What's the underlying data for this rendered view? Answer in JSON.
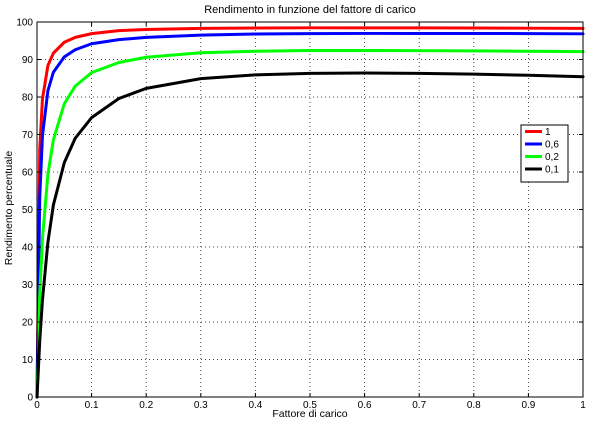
{
  "chart_data": {
    "type": "line",
    "title": "Rendimento in funzione del fattore di carico",
    "xlabel": "Fattore di carico",
    "ylabel": "Rendimento percentuale",
    "xlim": [
      0,
      1
    ],
    "ylim": [
      0,
      100
    ],
    "x_ticks": [
      0,
      0.1,
      0.2,
      0.3,
      0.4,
      0.5,
      0.6,
      0.7,
      0.8,
      0.9,
      1
    ],
    "x_tick_labels": [
      "0",
      "0.1",
      "0.2",
      "0.3",
      "0.4",
      "0.5",
      "0.6",
      "0.7",
      "0.8",
      "0.9",
      "1"
    ],
    "y_ticks": [
      0,
      10,
      20,
      30,
      40,
      50,
      60,
      70,
      80,
      90,
      100
    ],
    "y_tick_labels": [
      "0",
      "10",
      "20",
      "30",
      "40",
      "50",
      "60",
      "70",
      "80",
      "90",
      "100"
    ],
    "grid": true,
    "grid_style": "dotted",
    "legend_position": "right",
    "x": [
      0,
      0.005,
      0.01,
      0.02,
      0.03,
      0.05,
      0.07,
      0.1,
      0.15,
      0.2,
      0.3,
      0.4,
      0.5,
      0.6,
      0.7,
      0.8,
      0.9,
      1.0
    ],
    "series": [
      {
        "name": "1",
        "color": "#ff0000",
        "values": [
          0,
          66.0,
          79.5,
          88.4,
          91.7,
          94.6,
          95.9,
          96.9,
          97.7,
          98.0,
          98.3,
          98.4,
          98.45,
          98.45,
          98.45,
          98.4,
          98.35,
          98.3
        ]
      },
      {
        "name": "0,6",
        "color": "#0000ff",
        "values": [
          0,
          53.3,
          69.7,
          81.7,
          86.6,
          90.7,
          92.6,
          94.2,
          95.3,
          95.9,
          96.5,
          96.8,
          96.9,
          96.95,
          96.95,
          96.95,
          96.9,
          96.85
        ]
      },
      {
        "name": "0,2",
        "color": "#00ff00",
        "values": [
          0,
          27.3,
          42.3,
          59.4,
          68.6,
          78.2,
          82.9,
          86.5,
          89.2,
          90.6,
          91.8,
          92.2,
          92.4,
          92.4,
          92.35,
          92.3,
          92.2,
          92.1
        ]
      },
      {
        "name": "0,1",
        "color": "#000000",
        "values": [
          0,
          14.9,
          25.9,
          41.3,
          51.2,
          62.5,
          69.0,
          74.5,
          79.6,
          82.3,
          84.9,
          85.9,
          86.3,
          86.4,
          86.3,
          86.1,
          85.8,
          85.4
        ]
      }
    ]
  }
}
